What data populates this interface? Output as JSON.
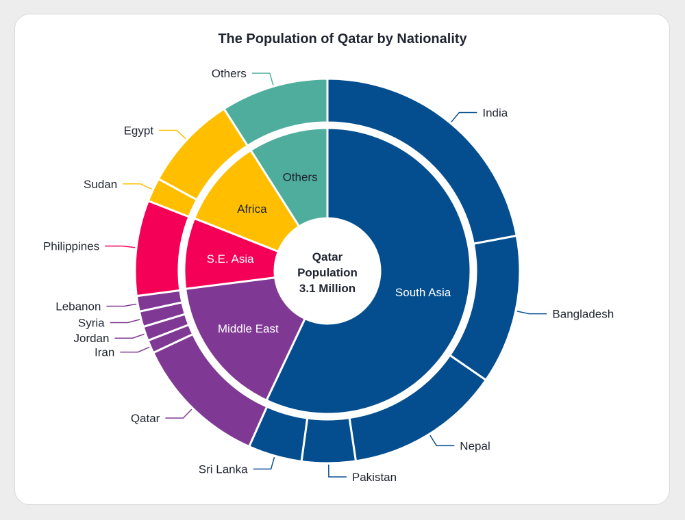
{
  "chart_data": {
    "type": "pie",
    "subtype": "sunburst",
    "title": "The Population of Qatar by Nationality",
    "center_label": [
      "Qatar",
      "Population",
      "3.1 Million"
    ],
    "inner": [
      {
        "name": "South Asia",
        "value": 57.0,
        "color": "#044e8f",
        "text_color": "#ffffff"
      },
      {
        "name": "Middle East",
        "value": 16.0,
        "color": "#7f3894",
        "text_color": "#ffffff"
      },
      {
        "name": "S.E. Asia",
        "value": 8.0,
        "color": "#f50057",
        "text_color": "#ffffff"
      },
      {
        "name": "Africa",
        "value": 10.0,
        "color": "#ffbf00",
        "text_color": "#1f2430"
      },
      {
        "name": "Others",
        "value": 9.0,
        "color": "#4fad9d",
        "text_color": "#1f2430"
      }
    ],
    "outer": [
      {
        "name": "India",
        "value": 22.0,
        "group": "South Asia"
      },
      {
        "name": "Bangladesh",
        "value": 12.5,
        "group": "South Asia"
      },
      {
        "name": "Nepal",
        "value": 13.0,
        "group": "South Asia"
      },
      {
        "name": "Pakistan",
        "value": 4.5,
        "group": "South Asia"
      },
      {
        "name": "Sri Lanka",
        "value": 4.5,
        "group": "South Asia"
      },
      {
        "name": "Qatar",
        "value": 11.3,
        "group": "Middle East"
      },
      {
        "name": "Iran",
        "value": 1.1,
        "group": "Middle East"
      },
      {
        "name": "Jordan",
        "value": 1.2,
        "group": "Middle East"
      },
      {
        "name": "Syria",
        "value": 1.3,
        "group": "Middle East"
      },
      {
        "name": "Lebanon",
        "value": 1.3,
        "group": "Middle East"
      },
      {
        "name": "Philippines",
        "value": 8.0,
        "group": "S.E. Asia"
      },
      {
        "name": "Sudan",
        "value": 2.0,
        "group": "Africa"
      },
      {
        "name": "Egypt",
        "value": 8.0,
        "group": "Africa"
      },
      {
        "name": "Others",
        "value": 9.0,
        "group": "Others"
      }
    ]
  }
}
